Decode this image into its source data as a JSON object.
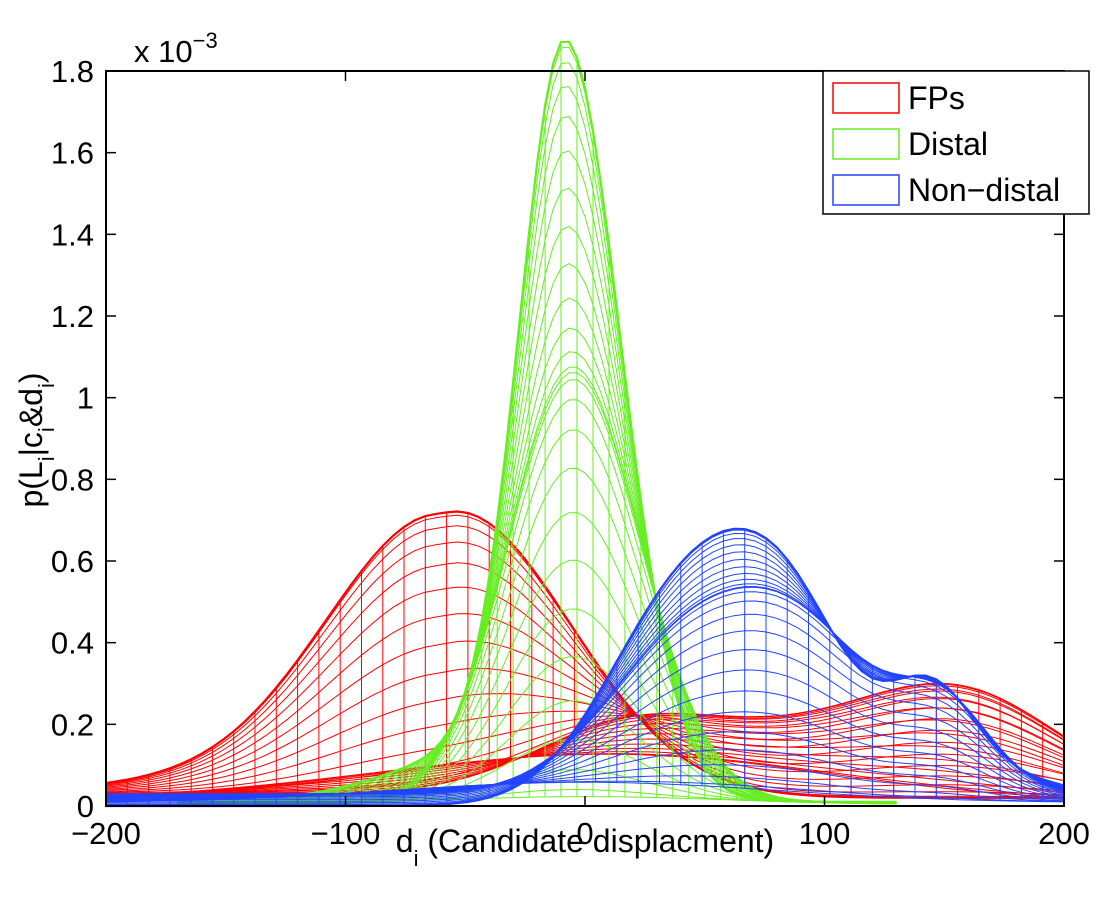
{
  "chart_data": {
    "type": "line",
    "xlabel": {
      "main": "d",
      "sub": "i",
      "rest": " (Candidate displacment)"
    },
    "ylabel": {
      "parts": [
        {
          "t": "p(L",
          "sub": false
        },
        {
          "t": "i",
          "sub": true
        },
        {
          "t": "|c",
          "sub": false
        },
        {
          "t": "i",
          "sub": true
        },
        {
          "t": "&d",
          "sub": false
        },
        {
          "t": "i",
          "sub": true
        },
        {
          "t": ")",
          "sub": false
        }
      ]
    },
    "xlim": [
      -200,
      200
    ],
    "ylim": [
      0,
      0.0018
    ],
    "x_ticks": [
      -200,
      -100,
      0,
      100,
      200
    ],
    "x_tick_labels": [
      "−200",
      "−100",
      "0",
      "100",
      "200"
    ],
    "y_ticks": [
      0,
      0.0002,
      0.0004,
      0.0006,
      0.0008,
      0.001,
      0.0012,
      0.0014,
      0.0016,
      0.0018
    ],
    "y_tick_labels": [
      "0",
      "0.2",
      "0.4",
      "0.6",
      "0.8",
      "1",
      "1.2",
      "1.4",
      "1.6",
      "1.8"
    ],
    "exponent_label": {
      "base": "x 10",
      "power": "−3"
    },
    "legend_position": "top-right",
    "series": [
      {
        "name": "FPs",
        "color": "#ff0000",
        "peaks": [
          {
            "x": -60,
            "y": 0.00069,
            "label": "main peak"
          },
          {
            "x": 20,
            "y": 0.00018
          },
          {
            "x": 160,
            "y": 0.00023
          }
        ]
      },
      {
        "name": "Distal",
        "color": "#66ee22",
        "peaks": [
          {
            "x": -8,
            "y": 0.00178,
            "label": "main peak"
          },
          {
            "x": 20,
            "y": 0.00021
          }
        ]
      },
      {
        "name": "Non−distal",
        "color": "#2244ff",
        "peaks": [
          {
            "x": 40,
            "y": 0.0005,
            "label": "main peak"
          },
          {
            "x": 80,
            "y": 0.00045
          },
          {
            "x": 145,
            "y": 0.00025
          }
        ]
      }
    ]
  }
}
